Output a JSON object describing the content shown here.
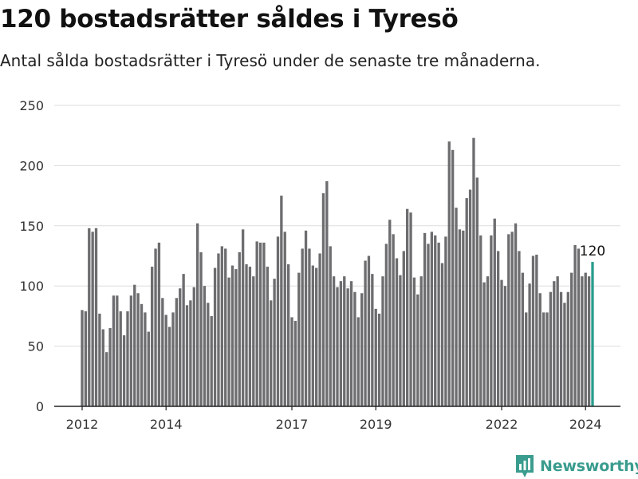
{
  "title": "120 bostadsrätter såldes i Tyresö",
  "subtitle": "Antal sålda bostadsrätter i Tyresö under de senaste tre månaderna.",
  "brand": {
    "name": "Newsworthy",
    "icon": "newsworthy-logo-icon"
  },
  "colors": {
    "bar": "#6d6d70",
    "highlight": "#2a9d8f",
    "grid": "#dddddd",
    "brand": "#3a9c8e"
  },
  "chart_data": {
    "type": "bar",
    "x_ticks": [
      "2012",
      "2014",
      "2017",
      "2019",
      "2022",
      "2024"
    ],
    "y_ticks": [
      "0",
      "50",
      "100",
      "150",
      "200",
      "250"
    ],
    "ylim": [
      0,
      250
    ],
    "grid": true,
    "highlight_label": "120",
    "values": [
      80,
      79,
      148,
      145,
      148,
      77,
      64,
      45,
      65,
      92,
      92,
      79,
      59,
      79,
      92,
      101,
      94,
      85,
      78,
      62,
      116,
      131,
      136,
      90,
      76,
      66,
      78,
      90,
      98,
      110,
      84,
      88,
      99,
      152,
      128,
      100,
      86,
      75,
      115,
      127,
      133,
      131,
      107,
      117,
      114,
      128,
      147,
      118,
      116,
      108,
      137,
      136,
      136,
      116,
      88,
      106,
      141,
      175,
      145,
      118,
      74,
      71,
      111,
      131,
      146,
      131,
      117,
      115,
      127,
      177,
      187,
      133,
      108,
      99,
      104,
      108,
      98,
      104,
      95,
      74,
      94,
      121,
      125,
      110,
      81,
      77,
      108,
      135,
      155,
      143,
      123,
      109,
      129,
      164,
      161,
      107,
      93,
      108,
      144,
      135,
      145,
      142,
      136,
      119,
      141,
      220,
      213,
      165,
      147,
      146,
      173,
      180,
      223,
      190,
      142,
      103,
      108,
      142,
      156,
      129,
      105,
      100,
      143,
      145,
      152,
      129,
      111,
      78,
      102,
      125,
      126,
      94,
      78,
      78,
      95,
      104,
      108,
      95,
      86,
      95,
      111,
      134,
      131,
      108,
      111,
      108,
      120
    ]
  }
}
